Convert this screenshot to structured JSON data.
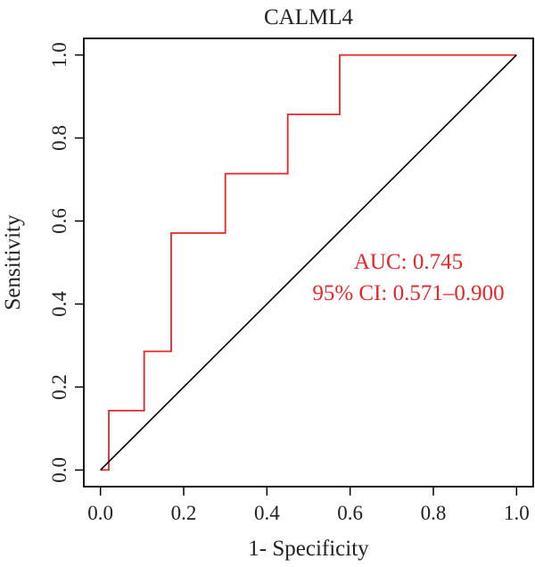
{
  "chart_data": {
    "type": "line",
    "title": "CALML4",
    "xlabel": "1- Specificity",
    "ylabel": "Sensitivity",
    "xlim": [
      -0.04,
      1.04
    ],
    "ylim": [
      -0.04,
      1.04
    ],
    "x_ticks": [
      "0.0",
      "0.2",
      "0.4",
      "0.6",
      "0.8",
      "1.0"
    ],
    "y_ticks": [
      "0.0",
      "0.2",
      "0.4",
      "0.6",
      "0.8",
      "1.0"
    ],
    "grid": false,
    "series": [
      {
        "color": "#e8262a",
        "x": [
          0.0,
          0.02,
          0.02,
          0.105,
          0.105,
          0.17,
          0.17,
          0.3,
          0.3,
          0.45,
          0.45,
          0.575,
          0.575,
          1.0
        ],
        "y": [
          0.0,
          0.0,
          0.143,
          0.143,
          0.286,
          0.286,
          0.571,
          0.571,
          0.714,
          0.714,
          0.857,
          0.857,
          1.0,
          1.0
        ]
      },
      {
        "color": "#000000",
        "x": [
          0.0,
          1.0
        ],
        "y": [
          0.0,
          1.0
        ]
      }
    ],
    "annotations": [
      {
        "text": "AUC: 0.745",
        "color": "#e8262a"
      },
      {
        "text": "95% CI: 0.571–0.900",
        "color": "#e8262a"
      }
    ]
  }
}
